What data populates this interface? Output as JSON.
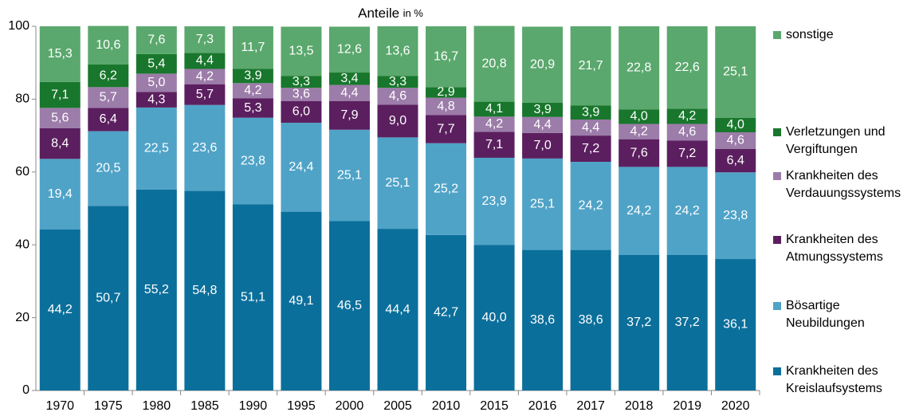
{
  "chart_data": {
    "type": "stacked_bar",
    "title": "Anteile",
    "subtitle": "in %",
    "categories": [
      "1970",
      "1975",
      "1980",
      "1985",
      "1990",
      "1995",
      "2000",
      "2005",
      "2010",
      "2015",
      "2016",
      "2017",
      "2018",
      "2019",
      "2020"
    ],
    "series": [
      {
        "name": "Krankheiten des Kreislaufsystems",
        "color": "#0b6f9b",
        "values": [
          44.2,
          50.7,
          55.2,
          54.8,
          51.1,
          49.1,
          46.5,
          44.4,
          42.7,
          40.0,
          38.6,
          38.6,
          37.2,
          37.2,
          36.1
        ],
        "value_labels": [
          "44,2",
          "50,7",
          "55,2",
          "54,8",
          "51,1",
          "49,1",
          "46,5",
          "44,4",
          "42,7",
          "40,0",
          "38,6",
          "38,6",
          "37,2",
          "37,2",
          "36,1"
        ]
      },
      {
        "name": "Bösartige Neubildungen",
        "color": "#4fa3c7",
        "values": [
          19.4,
          20.5,
          22.5,
          23.6,
          23.8,
          24.4,
          25.1,
          25.1,
          25.2,
          23.9,
          25.1,
          24.2,
          24.2,
          24.2,
          23.8
        ],
        "value_labels": [
          "19,4",
          "20,5",
          "22,5",
          "23,6",
          "23,8",
          "24,4",
          "25,1",
          "25,1",
          "25,2",
          "23,9",
          "25,1",
          "24,2",
          "24,2",
          "24,2",
          "23,8"
        ]
      },
      {
        "name": "Krankheiten des Atmungssystems",
        "color": "#5b1f5f",
        "values": [
          8.4,
          6.4,
          4.3,
          5.7,
          5.3,
          6.0,
          7.9,
          9.0,
          7.7,
          7.1,
          7.0,
          7.2,
          7.6,
          7.2,
          6.4
        ],
        "value_labels": [
          "8,4",
          "6,4",
          "4,3",
          "5,7",
          "5,3",
          "6,0",
          "7,9",
          "9,0",
          "7,7",
          "7,1",
          "7,0",
          "7,2",
          "7,6",
          "7,2",
          "6,4"
        ]
      },
      {
        "name": "Krankheiten des Verdauungssystems",
        "color": "#9c7ca9",
        "values": [
          5.6,
          5.7,
          5.0,
          4.2,
          4.2,
          3.6,
          4.4,
          4.6,
          4.8,
          4.2,
          4.4,
          4.4,
          4.2,
          4.6,
          4.6
        ],
        "value_labels": [
          "5,6",
          "5,7",
          "5,0",
          "4,2",
          "4,2",
          "3,6",
          "4,4",
          "4,6",
          "4,8",
          "4,2",
          "4,4",
          "4,4",
          "4,2",
          "4,6",
          "4,6"
        ]
      },
      {
        "name": "Verletzungen und Vergiftungen",
        "color": "#18772c",
        "values": [
          7.1,
          6.2,
          5.4,
          4.4,
          3.9,
          3.3,
          3.4,
          3.3,
          2.9,
          4.1,
          3.9,
          3.9,
          4.0,
          4.2,
          4.0
        ],
        "value_labels": [
          "7,1",
          "6,2",
          "5,4",
          "4,4",
          "3,9",
          "3,3",
          "3,4",
          "3,3",
          "2,9",
          "4,1",
          "3,9",
          "3,9",
          "4,0",
          "4,2",
          "4,0"
        ]
      },
      {
        "name": "sonstige",
        "color": "#5aa86d",
        "values": [
          15.3,
          10.6,
          7.6,
          7.3,
          11.7,
          13.5,
          12.6,
          13.6,
          16.7,
          20.8,
          20.9,
          21.7,
          22.8,
          22.6,
          25.1
        ],
        "value_labels": [
          "15,3",
          "10,6",
          "7,6",
          "7,3",
          "11,7",
          "13,5",
          "12,6",
          "13,6",
          "16,7",
          "20,8",
          "20,9",
          "21,7",
          "22,8",
          "22,6",
          "25,1"
        ]
      }
    ],
    "ylim": [
      0,
      100
    ],
    "yticks": [
      0,
      20,
      40,
      60,
      80,
      100
    ],
    "legend": "right"
  }
}
